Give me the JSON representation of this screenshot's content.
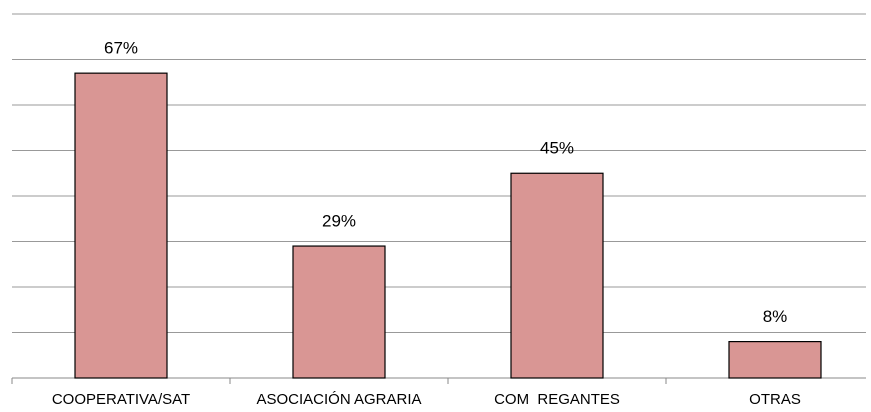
{
  "chart_data": {
    "type": "bar",
    "categories": [
      "COOPERATIVA/SAT",
      "ASOCIACIÓN AGRARIA",
      "COM  REGANTES",
      "OTRAS"
    ],
    "values": [
      67,
      29,
      45,
      8
    ],
    "value_labels": [
      "67%",
      "29%",
      "45%",
      "8%"
    ],
    "color": "#d99694",
    "ylim": [
      0,
      80
    ],
    "yticks": [
      0,
      10,
      20,
      30,
      40,
      50,
      60,
      70,
      80
    ],
    "grid": true
  }
}
